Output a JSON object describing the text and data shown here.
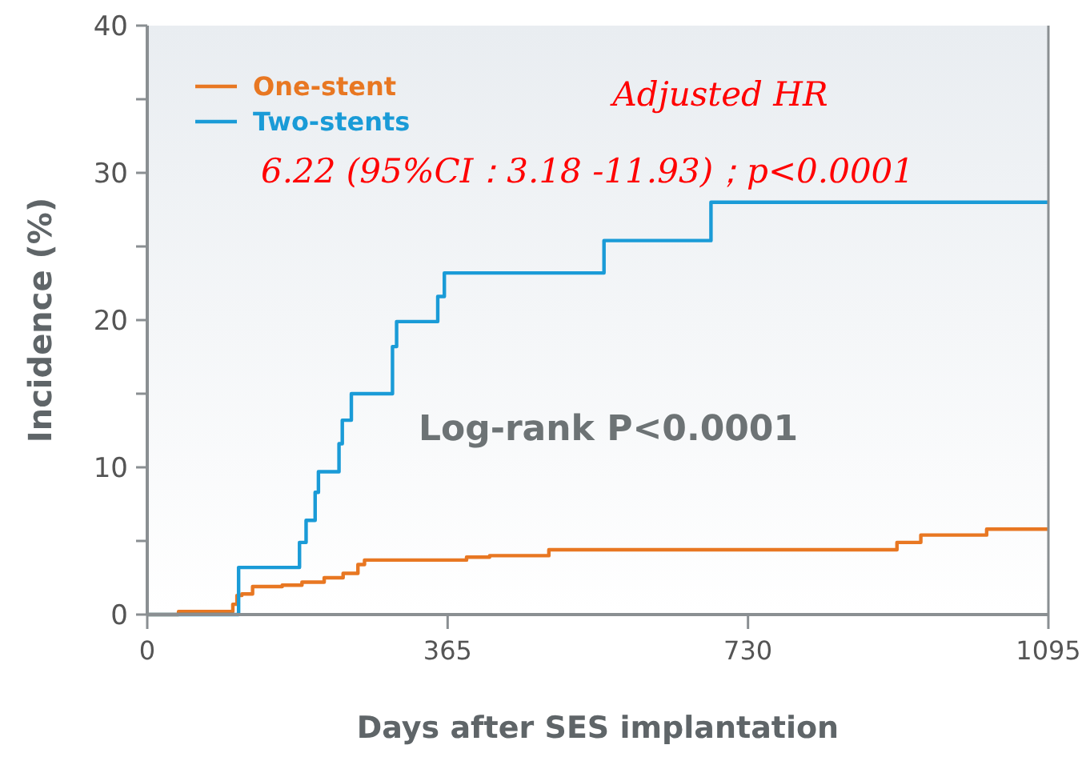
{
  "chart_data": {
    "type": "step",
    "xlabel": "Days after SES implantation",
    "ylabel": "Incidence (%)",
    "xlim": [
      0,
      1095
    ],
    "xticks": [
      0,
      365,
      730,
      1095
    ],
    "ylim": [
      0,
      40
    ],
    "yticks": [
      0,
      {
        "value": 5,
        "label": null
      },
      10,
      {
        "value": 15,
        "label": null
      },
      20,
      {
        "value": 25,
        "label": null
      },
      30,
      {
        "value": 35,
        "label": null
      },
      40
    ],
    "legend": "top left",
    "grid": false,
    "annotations": [
      "Adjusted HR",
      "6.22 (95%CI：3.18 -11.93)；p<0.0001",
      "Log-rank P<0.0001"
    ],
    "series": [
      {
        "name": "One-stent",
        "color": "#e87722",
        "x": [
          0,
          38,
          104,
          109,
          115,
          128,
          164,
          188,
          215,
          238,
          256,
          264,
          388,
          416,
          488,
          911,
          940,
          1020,
          1095
        ],
        "values": [
          0,
          0.2,
          0.7,
          1.3,
          1.4,
          1.9,
          2.0,
          2.2,
          2.5,
          2.8,
          3.4,
          3.7,
          3.9,
          4.0,
          4.4,
          4.9,
          5.4,
          5.8,
          5.8
        ]
      },
      {
        "name": "Two-stents",
        "color": "#1a9bd7",
        "x": [
          0,
          111,
          185,
          193,
          204,
          208,
          233,
          237,
          248,
          298,
          303,
          353,
          361,
          555,
          685,
          1095
        ],
        "values": [
          0,
          3.2,
          4.9,
          6.4,
          8.3,
          9.7,
          11.6,
          13.2,
          15.0,
          18.2,
          19.9,
          21.6,
          23.2,
          25.4,
          28.0,
          28.0
        ]
      }
    ]
  }
}
